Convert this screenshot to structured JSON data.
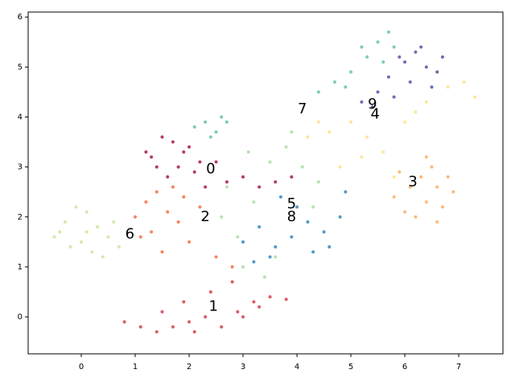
{
  "chart_data": {
    "type": "scatter",
    "xlim": [
      -0.985,
      7.82
    ],
    "ylim": [
      -0.74,
      6.1
    ],
    "xticks": [
      0,
      1,
      2,
      3,
      4,
      5,
      6,
      7
    ],
    "yticks": [
      0,
      1,
      2,
      3,
      4,
      5,
      6
    ],
    "grid": false,
    "series": [
      {
        "color": "#a8174d",
        "x": [
          1.3,
          1.5,
          1.7,
          1.4,
          1.9,
          2.1,
          1.6,
          2.3,
          2.5,
          2.0,
          1.8,
          2.7,
          3.0,
          3.3,
          3.6,
          3.9,
          1.2,
          2.2
        ],
        "y": [
          3.2,
          3.6,
          3.5,
          3.0,
          3.3,
          2.9,
          2.8,
          2.6,
          3.1,
          3.4,
          3.0,
          2.7,
          2.8,
          2.6,
          2.7,
          2.8,
          3.3,
          3.1
        ]
      },
      {
        "color": "#d53e4f",
        "x": [
          0.8,
          1.1,
          1.4,
          1.7,
          2.0,
          2.3,
          2.6,
          2.9,
          3.2,
          3.5,
          3.8,
          2.4,
          2.8,
          3.3,
          1.9,
          2.1,
          3.0,
          1.5
        ],
        "y": [
          -0.1,
          -0.2,
          -0.3,
          -0.2,
          -0.1,
          0.0,
          -0.2,
          0.1,
          0.3,
          0.4,
          0.35,
          0.5,
          0.7,
          0.2,
          0.3,
          -0.3,
          0.0,
          0.1
        ]
      },
      {
        "color": "#f46d43",
        "x": [
          1.0,
          1.2,
          1.4,
          1.6,
          1.3,
          1.8,
          2.0,
          1.5,
          1.1,
          2.2,
          1.7,
          2.5,
          2.8,
          1.9
        ],
        "y": [
          2.0,
          2.3,
          2.5,
          2.1,
          1.7,
          1.9,
          1.5,
          1.3,
          1.6,
          2.2,
          2.6,
          1.2,
          1.0,
          2.4
        ]
      },
      {
        "color": "#fdae61",
        "x": [
          5.8,
          6.0,
          6.2,
          6.4,
          6.6,
          6.8,
          6.5,
          6.3,
          6.1,
          6.7,
          6.9,
          6.4,
          5.9,
          6.6
        ],
        "y": [
          2.4,
          2.1,
          2.0,
          2.3,
          2.6,
          2.8,
          3.0,
          2.8,
          2.6,
          2.2,
          2.5,
          3.2,
          2.9,
          1.9
        ]
      },
      {
        "color": "#fee08b",
        "x": [
          4.2,
          4.6,
          5.0,
          5.3,
          5.6,
          6.0,
          6.4,
          6.8,
          7.1,
          7.3,
          5.8,
          5.2,
          4.8,
          6.6,
          4.4,
          6.2
        ],
        "y": [
          3.6,
          3.7,
          3.9,
          3.6,
          3.3,
          3.9,
          4.3,
          4.6,
          4.7,
          4.4,
          2.8,
          3.2,
          3.0,
          4.9,
          3.9,
          4.1
        ]
      },
      {
        "color": "#3288bd",
        "x": [
          3.0,
          3.3,
          3.6,
          3.9,
          4.2,
          4.5,
          4.8,
          4.6,
          4.3,
          4.0,
          3.7,
          3.5,
          4.9,
          3.2
        ],
        "y": [
          1.5,
          1.8,
          1.4,
          1.6,
          1.9,
          1.7,
          2.0,
          1.4,
          1.3,
          2.2,
          2.4,
          1.2,
          2.5,
          1.1
        ]
      },
      {
        "color": "#c7e89a",
        "x": [
          -0.5,
          -0.3,
          -0.1,
          0.1,
          0.3,
          0.5,
          0.7,
          0.2,
          0.0,
          -0.2,
          0.4,
          0.6,
          -0.4,
          0.1
        ],
        "y": [
          1.6,
          1.9,
          2.2,
          2.1,
          1.8,
          1.6,
          1.4,
          1.3,
          1.5,
          1.4,
          1.2,
          1.9,
          1.7,
          1.7
        ]
      },
      {
        "color": "#66c2a5",
        "x": [
          2.1,
          2.3,
          2.5,
          2.7,
          2.4,
          4.4,
          4.7,
          5.0,
          5.3,
          5.5,
          5.7,
          5.8,
          5.2,
          5.6,
          4.9,
          2.6
        ],
        "y": [
          3.8,
          3.9,
          3.7,
          3.9,
          3.6,
          4.5,
          4.7,
          4.9,
          5.2,
          5.5,
          5.7,
          5.4,
          5.4,
          5.1,
          4.6,
          4.0
        ]
      },
      {
        "color": "#abdda4",
        "x": [
          2.6,
          2.9,
          3.2,
          3.5,
          3.8,
          4.1,
          4.4,
          3.0,
          3.4,
          2.7,
          3.9,
          4.3,
          3.1,
          3.6
        ],
        "y": [
          2.0,
          1.6,
          2.3,
          3.1,
          3.4,
          3.0,
          2.7,
          1.0,
          0.8,
          2.6,
          3.7,
          2.2,
          3.3,
          1.2
        ]
      },
      {
        "color": "#5e4fa2",
        "x": [
          5.2,
          5.5,
          5.8,
          6.1,
          6.4,
          6.7,
          6.3,
          6.0,
          5.7,
          6.5,
          6.2,
          5.9,
          5.4,
          6.6
        ],
        "y": [
          4.3,
          4.5,
          4.4,
          4.7,
          5.0,
          5.2,
          5.4,
          5.1,
          4.8,
          4.6,
          5.3,
          5.2,
          4.2,
          4.9
        ]
      }
    ],
    "annotations": [
      {
        "text": "0",
        "x": 2.4,
        "y": 2.95
      },
      {
        "text": "1",
        "x": 2.45,
        "y": 0.2
      },
      {
        "text": "2",
        "x": 2.3,
        "y": 2.0
      },
      {
        "text": "3",
        "x": 6.15,
        "y": 2.7
      },
      {
        "text": "4",
        "x": 5.45,
        "y": 4.05
      },
      {
        "text": "5",
        "x": 3.9,
        "y": 2.25
      },
      {
        "text": "6",
        "x": 0.9,
        "y": 1.65
      },
      {
        "text": "7",
        "x": 4.1,
        "y": 4.15
      },
      {
        "text": "8",
        "x": 3.9,
        "y": 2.0
      },
      {
        "text": "9",
        "x": 5.4,
        "y": 4.25
      }
    ]
  }
}
